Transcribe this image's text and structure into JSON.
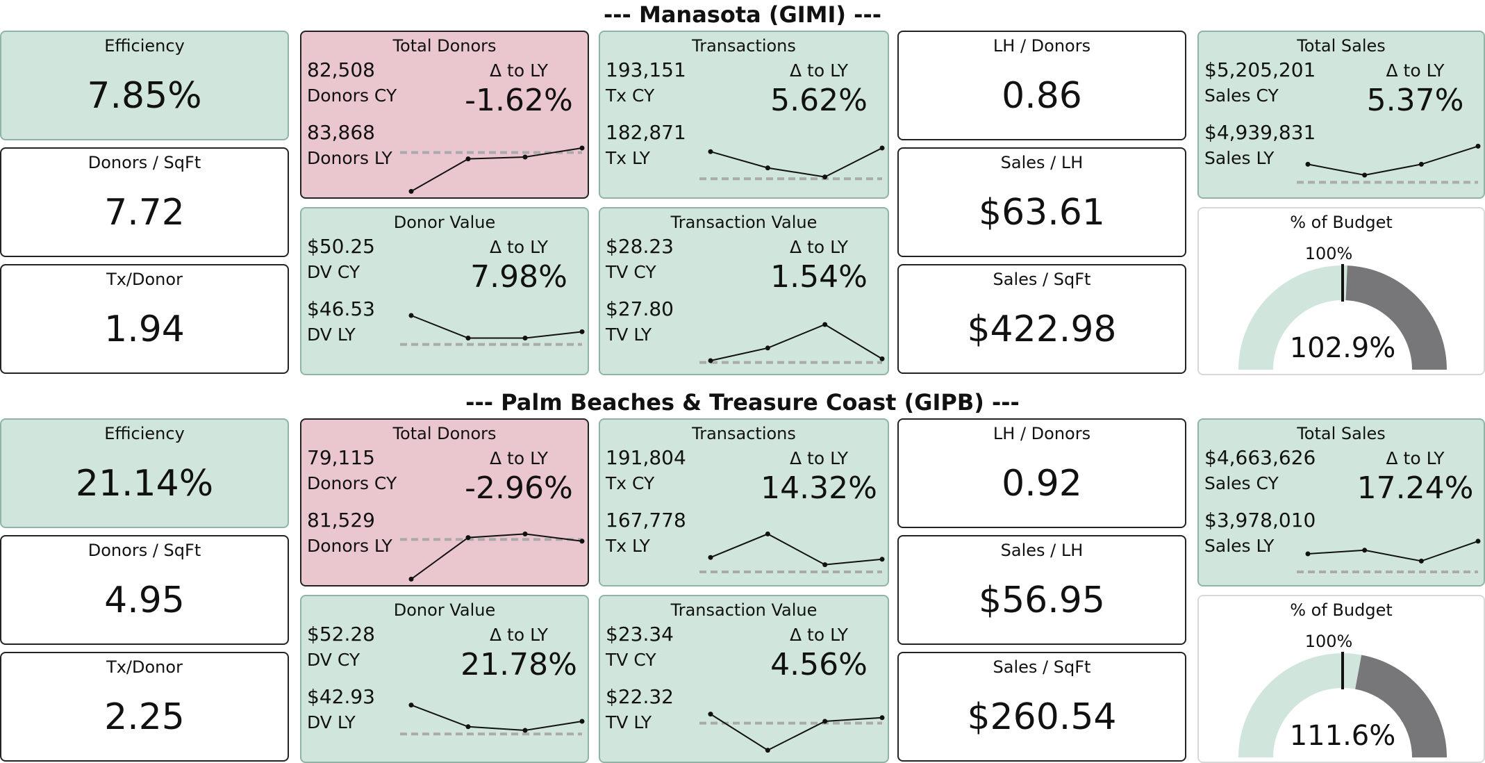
{
  "sections": [
    {
      "title": "--- Manasota (GIMI) ---",
      "efficiency": {
        "title": "Efficiency",
        "value": "7.85%",
        "status": "good"
      },
      "donors_sqft": {
        "title": "Donors / SqFt",
        "value": "7.72"
      },
      "tx_donor": {
        "title": "Tx/Donor",
        "value": "1.94"
      },
      "total_donors": {
        "title": "Total Donors",
        "cy_value": "82,508",
        "cy_label": "Donors CY",
        "ly_value": "83,868",
        "ly_label": "Donors LY",
        "delta_label": "Δ to LY",
        "delta": "-1.62%",
        "status": "bad",
        "trend": [
          2,
          38,
          40,
          50
        ],
        "baseline": 45
      },
      "transactions": {
        "title": "Transactions",
        "cy_value": "193,151",
        "cy_label": "Tx CY",
        "ly_value": "182,871",
        "ly_label": "Tx LY",
        "delta_label": "Δ to LY",
        "delta": "5.62%",
        "status": "good",
        "trend": [
          46,
          28,
          18,
          50
        ],
        "baseline": 16
      },
      "donor_value": {
        "title": "Donor Value",
        "cy_value": "$50.25",
        "cy_label": "DV CY",
        "ly_value": "$46.53",
        "ly_label": "DV LY",
        "delta_label": "Δ to LY",
        "delta": "7.98%",
        "status": "good",
        "trend": [
          60,
          35,
          35,
          42
        ],
        "baseline": 28
      },
      "transaction_value": {
        "title": "Transaction Value",
        "cy_value": "$28.23",
        "cy_label": "TV CY",
        "ly_value": "$27.80",
        "ly_label": "TV LY",
        "delta_label": "Δ to LY",
        "delta": "1.54%",
        "status": "good",
        "trend": [
          10,
          24,
          50,
          12
        ],
        "baseline": 8
      },
      "lh_donors": {
        "title": "LH / Donors",
        "value": "0.86"
      },
      "sales_lh": {
        "title": "Sales / LH",
        "value": "$63.61"
      },
      "sales_sqft": {
        "title": "Sales / SqFt",
        "value": "$422.98"
      },
      "total_sales": {
        "title": "Total Sales",
        "cy_value": "$5,205,201",
        "cy_label": "Sales CY",
        "ly_value": "$4,939,831",
        "ly_label": "Sales LY",
        "delta_label": "Δ to LY",
        "delta": "5.37%",
        "status": "good",
        "trend": [
          32,
          20,
          32,
          52
        ],
        "baseline": 12
      },
      "budget": {
        "title": "% of Budget",
        "target_label": "100%",
        "value": "102.9%",
        "fraction": 1.029,
        "gauge_max": 2.0
      }
    },
    {
      "title": "--- Palm Beaches & Treasure Coast (GIPB) ---",
      "efficiency": {
        "title": "Efficiency",
        "value": "21.14%",
        "status": "good"
      },
      "donors_sqft": {
        "title": "Donors / SqFt",
        "value": "4.95"
      },
      "tx_donor": {
        "title": "Tx/Donor",
        "value": "2.25"
      },
      "total_donors": {
        "title": "Total Donors",
        "cy_value": "79,115",
        "cy_label": "Donors CY",
        "ly_value": "81,529",
        "ly_label": "Donors LY",
        "delta_label": "Δ to LY",
        "delta": "-2.96%",
        "status": "bad",
        "trend": [
          2,
          48,
          52,
          44
        ],
        "baseline": 46
      },
      "transactions": {
        "title": "Transactions",
        "cy_value": "191,804",
        "cy_label": "Tx CY",
        "ly_value": "167,778",
        "ly_label": "Tx LY",
        "delta_label": "Δ to LY",
        "delta": "14.32%",
        "status": "good",
        "trend": [
          26,
          52,
          18,
          24
        ],
        "baseline": 10
      },
      "donor_value": {
        "title": "Donor Value",
        "cy_value": "$52.28",
        "cy_label": "DV CY",
        "ly_value": "$42.93",
        "ly_label": "DV LY",
        "delta_label": "Δ to LY",
        "delta": "21.78%",
        "status": "good",
        "trend": [
          58,
          34,
          30,
          40
        ],
        "baseline": 26
      },
      "transaction_value": {
        "title": "Transaction Value",
        "cy_value": "$23.34",
        "cy_label": "TV CY",
        "ly_value": "$22.32",
        "ly_label": "TV LY",
        "delta_label": "Δ to LY",
        "delta": "4.56%",
        "status": "good",
        "trend": [
          48,
          8,
          40,
          44
        ],
        "baseline": 38
      },
      "lh_donors": {
        "title": "LH / Donors",
        "value": "0.92"
      },
      "sales_lh": {
        "title": "Sales / LH",
        "value": "$56.95"
      },
      "sales_sqft": {
        "title": "Sales / SqFt",
        "value": "$260.54"
      },
      "total_sales": {
        "title": "Total Sales",
        "cy_value": "$4,663,626",
        "cy_label": "Sales CY",
        "ly_value": "$3,978,010",
        "ly_label": "Sales LY",
        "delta_label": "Δ to LY",
        "delta": "17.24%",
        "status": "good",
        "trend": [
          30,
          34,
          22,
          44
        ],
        "baseline": 10
      },
      "budget": {
        "title": "% of Budget",
        "target_label": "100%",
        "value": "111.6%",
        "fraction": 1.116,
        "gauge_max": 2.0
      }
    }
  ],
  "colors": {
    "good": "#d0e6dd",
    "bad": "#eac6ce",
    "gauge_fill": "#d0e6dd",
    "gauge_rest": "#77777a",
    "target": "#111111",
    "baseline": "#aaaaaa"
  }
}
